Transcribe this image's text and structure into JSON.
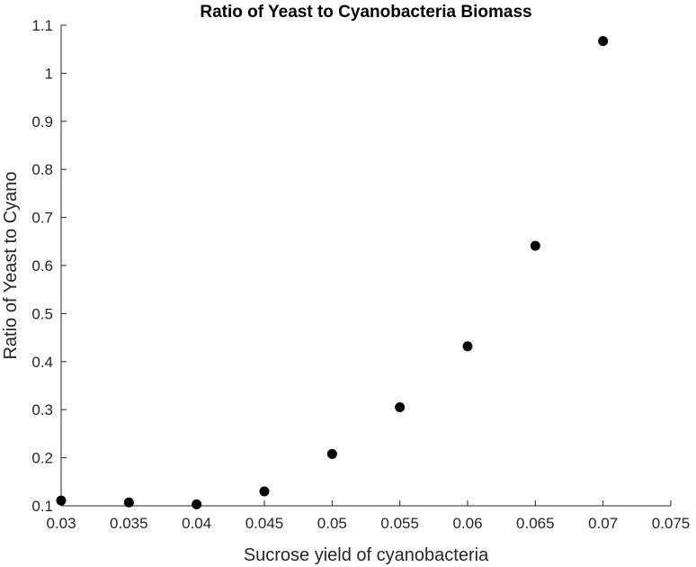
{
  "chart_data": {
    "type": "scatter",
    "title": "Ratio of Yeast to Cyanobacteria Biomass",
    "xlabel": "Sucrose yield of cyanobacteria",
    "ylabel": "Ratio of Yeast to Cyano",
    "xlim": [
      0.03,
      0.075
    ],
    "ylim": [
      0.1,
      1.1
    ],
    "xticks": [
      0.03,
      0.035,
      0.04,
      0.045,
      0.05,
      0.055,
      0.06,
      0.065,
      0.07,
      0.075
    ],
    "xtick_labels": [
      "0.03",
      "0.035",
      "0.04",
      "0.045",
      "0.05",
      "0.055",
      "0.06",
      "0.065",
      "0.07",
      "0.075"
    ],
    "yticks": [
      0.1,
      0.2,
      0.3,
      0.4,
      0.5,
      0.6,
      0.7,
      0.8,
      0.9,
      1.0,
      1.1
    ],
    "ytick_labels": [
      "0.1",
      "0.2",
      "0.3",
      "0.4",
      "0.5",
      "0.6",
      "0.7",
      "0.8",
      "0.9",
      "1",
      "1.1"
    ],
    "grid": false,
    "legend": "none",
    "marker_color": "#000000",
    "series": [
      {
        "x": [
          0.03,
          0.035,
          0.04,
          0.045,
          0.05,
          0.055,
          0.06,
          0.065,
          0.07
        ],
        "y": [
          0.111,
          0.107,
          0.103,
          0.13,
          0.208,
          0.305,
          0.432,
          0.641,
          1.067
        ]
      }
    ]
  }
}
